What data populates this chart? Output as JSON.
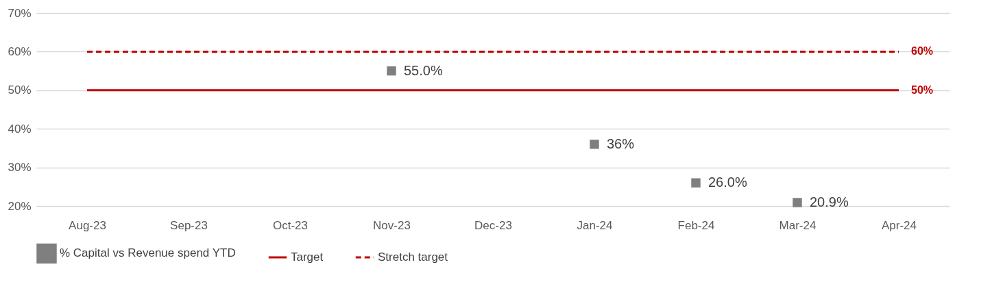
{
  "chart_data": {
    "type": "scatter",
    "categories": [
      "Aug-23",
      "Sep-23",
      "Oct-23",
      "Nov-23",
      "Dec-23",
      "Jan-24",
      "Feb-24",
      "Mar-24",
      "Apr-24"
    ],
    "ylim": [
      20,
      70
    ],
    "yticks": [
      {
        "value": 20,
        "label": "20%"
      },
      {
        "value": 30,
        "label": "30%"
      },
      {
        "value": 40,
        "label": "40%"
      },
      {
        "value": 50,
        "label": "50%"
      },
      {
        "value": 60,
        "label": "60%"
      },
      {
        "value": 70,
        "label": "70%"
      }
    ],
    "grid": "y",
    "legend": "bottom",
    "series": [
      {
        "name": "% Capital vs Revenue spend YTD",
        "marker": "square",
        "color": "#7f7f7f",
        "values": [
          null,
          null,
          null,
          55.0,
          null,
          36,
          26.0,
          20.9,
          null
        ],
        "value_labels": [
          null,
          null,
          null,
          "55.0%",
          null,
          "36%",
          "26.0%",
          "20.9%",
          null
        ]
      },
      {
        "name": "Target",
        "type": "line",
        "color": "#c00000",
        "marker": "none",
        "line_style": "solid",
        "values": [
          50,
          50,
          50,
          50,
          50,
          50,
          50,
          50,
          50
        ],
        "value_labels": [
          null,
          null,
          null,
          null,
          null,
          null,
          null,
          null,
          "50%"
        ]
      },
      {
        "name": "Stretch target",
        "type": "line",
        "color": "#c00000",
        "marker": "none",
        "line_style": "dashed",
        "values": [
          60,
          60,
          60,
          60,
          60,
          60,
          60,
          60,
          60
        ],
        "value_labels": [
          null,
          null,
          null,
          null,
          null,
          null,
          null,
          null,
          "60%"
        ]
      }
    ]
  }
}
